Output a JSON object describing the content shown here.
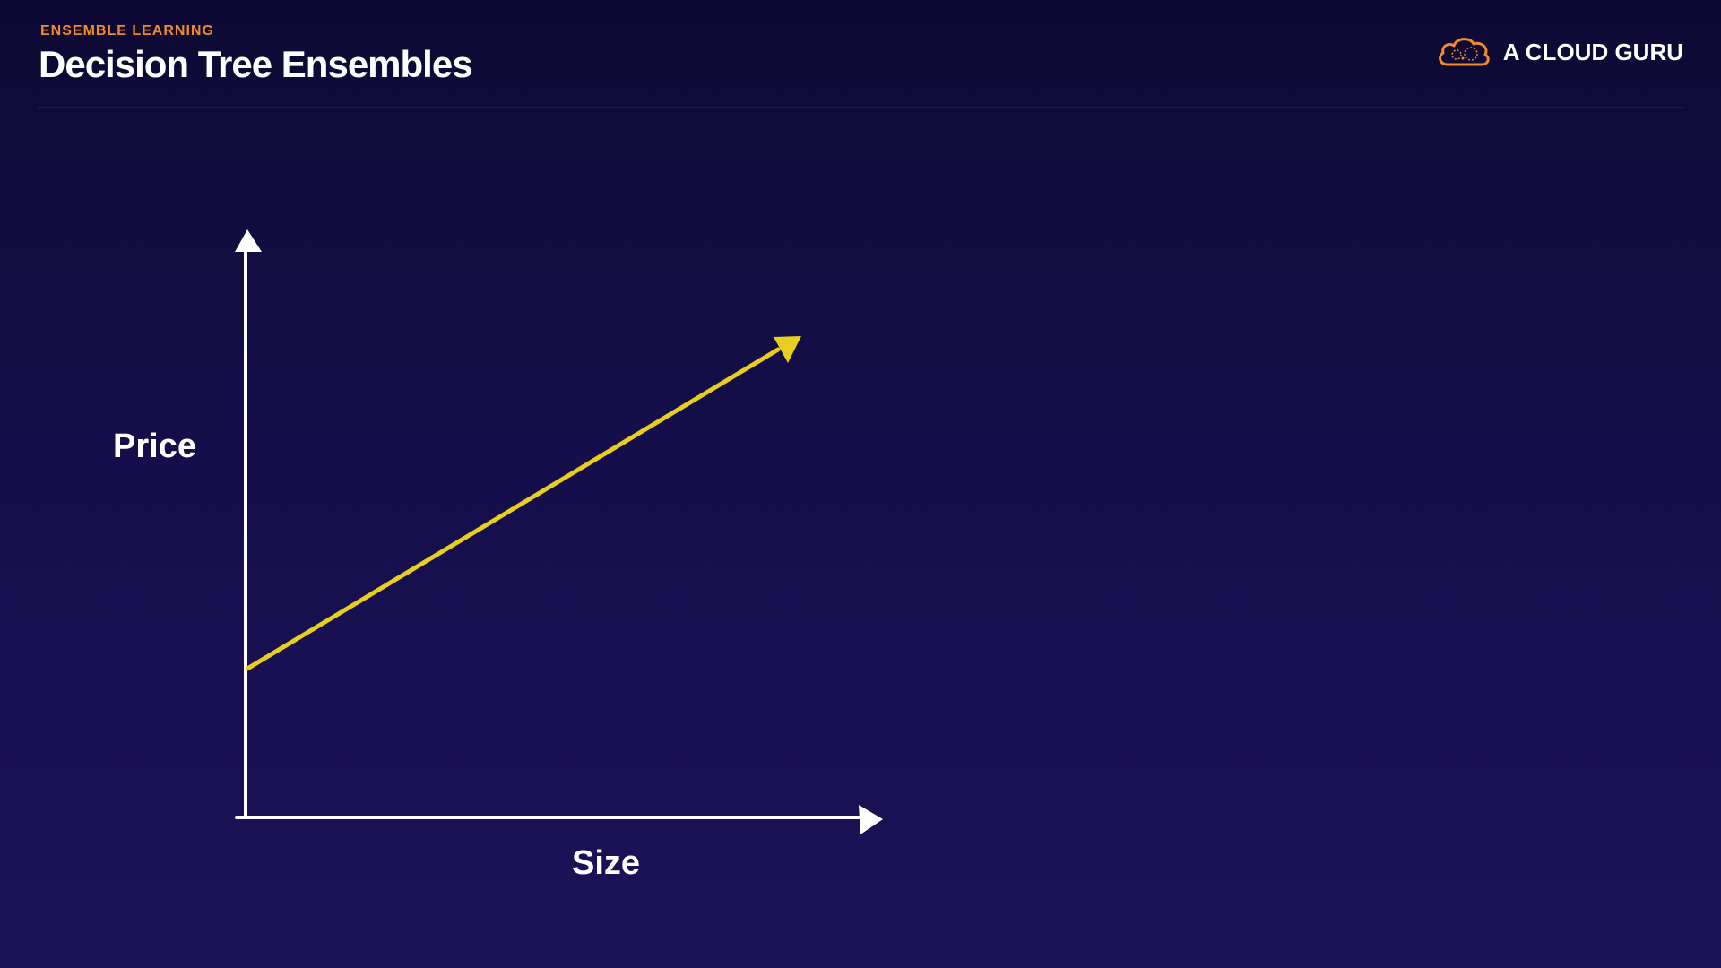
{
  "header": {
    "eyebrow": "ENSEMBLE LEARNING",
    "title": "Decision Tree Ensembles"
  },
  "brand": {
    "name": "A CLOUD GURU",
    "logo_icon": "cloud-logo-icon",
    "logo_color": "#f08a2c"
  },
  "diagram": {
    "y_axis_label": "Price",
    "x_axis_label": "Size",
    "trend_line_color": "#e8cf1f",
    "axis_color": "#ffffff"
  },
  "colors": {
    "accent": "#f08a2c",
    "background_top": "#0d0933",
    "background_bottom": "#1c1259"
  }
}
